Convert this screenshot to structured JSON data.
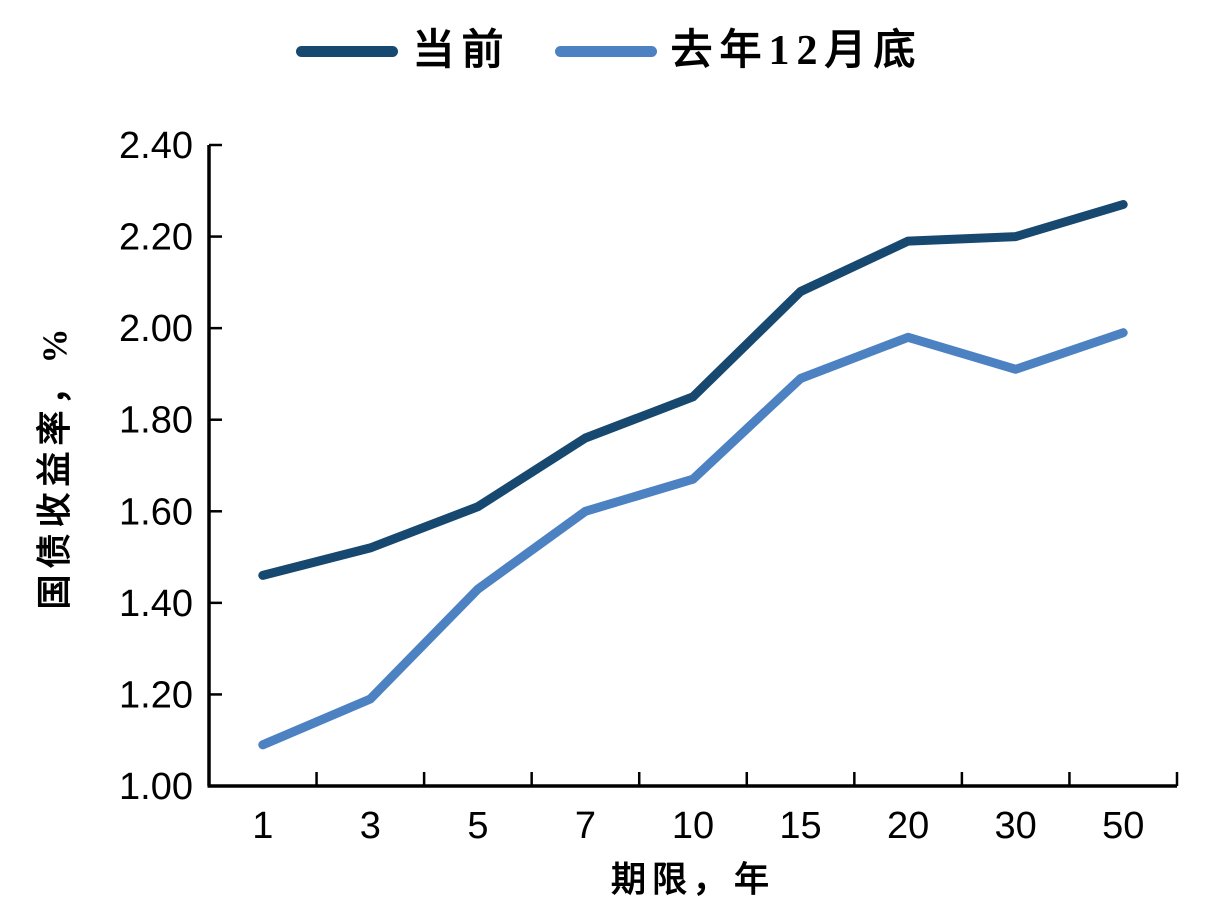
{
  "chart_data": {
    "type": "line",
    "title": "",
    "xlabel": "期限，年",
    "ylabel": "国债收益率，%",
    "categories": [
      "1",
      "3",
      "5",
      "7",
      "10",
      "15",
      "20",
      "30",
      "50"
    ],
    "x_axis_style": "category axis, inward tick marks at category boundaries",
    "ylim": [
      1.0,
      2.4
    ],
    "ytick_step": 0.2,
    "yticks": [
      "1.00",
      "1.20",
      "1.40",
      "1.60",
      "1.80",
      "2.00",
      "2.20",
      "2.40"
    ],
    "grid": false,
    "legend_position": "top-center",
    "series": [
      {
        "name": "当前",
        "color": "#17486f",
        "values": [
          1.46,
          1.52,
          1.61,
          1.76,
          1.85,
          2.08,
          2.19,
          2.2,
          2.27
        ]
      },
      {
        "name": "去年12月底",
        "color": "#4c81c2",
        "values": [
          1.09,
          1.19,
          1.43,
          1.6,
          1.67,
          1.89,
          1.98,
          1.91,
          1.99
        ]
      }
    ],
    "axis_color": "#000000",
    "text_color": "#000000"
  }
}
